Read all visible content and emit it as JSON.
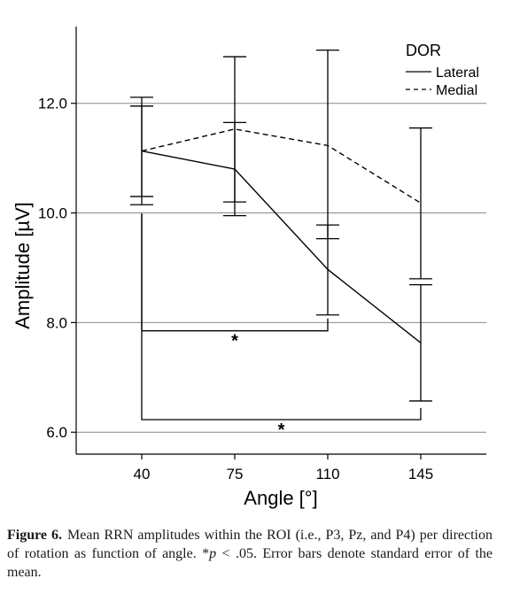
{
  "chart_data": {
    "type": "line",
    "xlabel": "Angle [°]",
    "ylabel": "Amplitude [µV]",
    "categories": [
      "40",
      "75",
      "110",
      "145"
    ],
    "y_ticks": [
      "6.0",
      "8.0",
      "10.0",
      "12.0"
    ],
    "y_tick_values": [
      6,
      8,
      10,
      12
    ],
    "ylim": [
      5.6,
      13.4
    ],
    "grid": "horizontal",
    "legend": {
      "title": "DOR",
      "placement": "top-right",
      "entries": [
        "Lateral",
        "Medial"
      ]
    },
    "series": [
      {
        "name": "Lateral",
        "line_style": "solid",
        "values": [
          11.13,
          10.8,
          8.97,
          7.63
        ],
        "error_low": [
          10.15,
          9.95,
          8.14,
          6.57
        ],
        "error_high": [
          12.11,
          11.65,
          9.78,
          8.69
        ]
      },
      {
        "name": "Medial",
        "line_style": "dashed",
        "values": [
          11.13,
          11.53,
          11.23,
          10.18
        ],
        "error_low": [
          10.3,
          10.2,
          9.53,
          8.8
        ],
        "error_high": [
          11.95,
          12.85,
          12.97,
          11.55
        ]
      }
    ],
    "annotations": [
      {
        "label": "*",
        "from": "40",
        "to": "110",
        "y": 7.85
      },
      {
        "label": "*",
        "from": "40",
        "to": "145",
        "y": 6.23
      }
    ],
    "colors": {
      "line": "#000000",
      "grid": "#888888",
      "axis": "#000000"
    }
  },
  "caption": {
    "label": "Figure 6.",
    "text_before": "Mean RRN amplitudes within the ROI (i.e., P3, Pz, and P4) per direction of rotation as function of angle. *",
    "italic": "p",
    "text_after": " < .05. Error bars denote standard error of the mean."
  }
}
